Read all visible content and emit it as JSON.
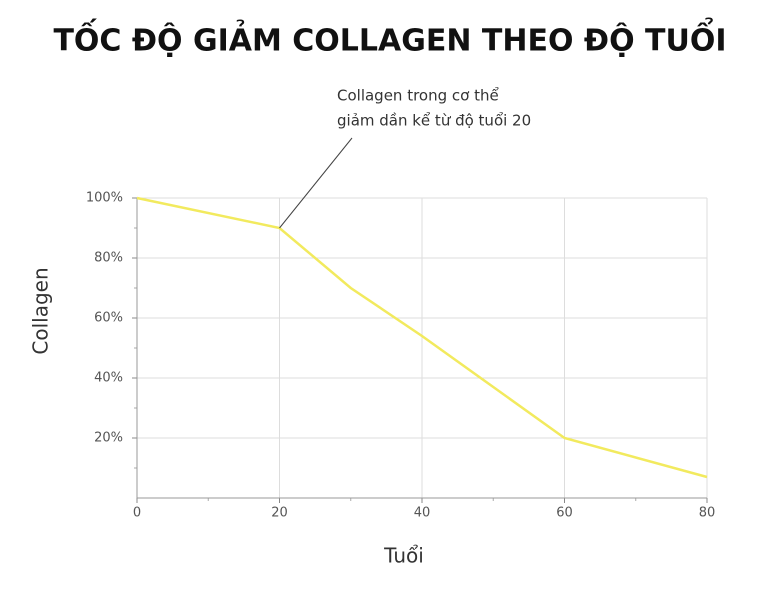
{
  "chart_data": {
    "type": "line",
    "title": "TỐC ĐỘ GIẢM COLLAGEN THEO ĐỘ TUỔI",
    "x_label": "Tuổi",
    "y_label": "Collagen",
    "annotation": [
      "Collagen trong cơ thể",
      "giảm dần kể từ độ tuổi 20"
    ],
    "x": [
      0,
      20,
      30,
      40,
      60,
      80
    ],
    "series": [
      {
        "name": "Collagen",
        "color": "#f2ea5e",
        "values": [
          100,
          90,
          70,
          54,
          20,
          7
        ]
      }
    ],
    "xlim": [
      0,
      80
    ],
    "xticks": [
      0,
      20,
      40,
      60,
      80
    ],
    "ylim": [
      0,
      100
    ],
    "yticks": [
      {
        "value": 20,
        "label": "20%"
      },
      {
        "value": 40,
        "label": "40%"
      },
      {
        "value": 60,
        "label": "60%"
      },
      {
        "value": 80,
        "label": "80%"
      },
      {
        "value": 100,
        "label": "100%"
      }
    ],
    "grid": true
  }
}
